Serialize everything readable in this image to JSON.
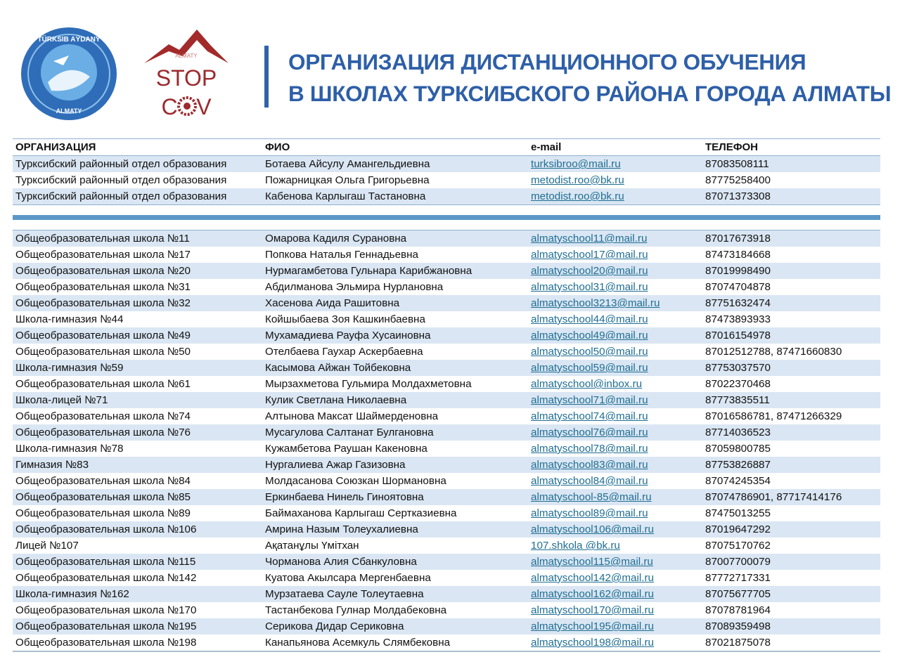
{
  "header": {
    "logo_left_text": [
      "TÜRKSIB AÝDANY",
      "ALMATY"
    ],
    "logo_right_text": [
      "ALMATY",
      "STOP",
      "COV"
    ],
    "title_line1": "ОРГАНИЗАЦИЯ ДИСТАНЦИОННОГО ОБУЧЕНИЯ",
    "title_line2": "В ШКОЛАХ ТУРКСИБСКОГО РАЙОНА ГОРОДА АЛМАТЫ",
    "accent_color": "#2e5fa8"
  },
  "columns": [
    "ОРГАНИЗАЦИЯ",
    "ФИО",
    "e-mail",
    "ТЕЛЕФОН"
  ],
  "department_rows": [
    [
      "Турксибский районный отдел образования",
      "Ботаева Айсулу Амангельдиевна",
      "turksibroo@mail.ru",
      "87083508111"
    ],
    [
      "Турксибский районный отдел образования",
      "Пожарницкая  Ольга  Григорьевна",
      "metodist.roo@bk.ru",
      "87775258400"
    ],
    [
      "Турксибский районный отдел образования",
      "Кабенова  Карлыгаш Тастановна",
      "metodist.roo@bk.ru",
      "87071373308"
    ]
  ],
  "school_rows": [
    [
      "Общеобразовательная школа №11",
      "Омарова Кадиля Сурановна",
      "almatyschool11@mail.ru",
      "87017673918"
    ],
    [
      "Общеобразовательная школа №17",
      "Попкова Наталья Геннадьевна",
      "almatyschool17@mail.ru",
      "87473184668"
    ],
    [
      "Общеобразовательная школа №20",
      "Нурмагамбетова Гульнара Карибжановна",
      "almatyschool20@mail.ru",
      "87019998490"
    ],
    [
      "Общеобразовательная школа №31",
      "Абдилманова Эльмира Нурлановна",
      "almatyschool31@mail.ru",
      "87074704878"
    ],
    [
      "Общеобразовательная школа №32",
      "Хасенова Аида Рашитовна",
      "almatyschool3213@mail.ru",
      "87751632474"
    ],
    [
      "Школа-гимназия №44",
      "Койшыбаева Зоя Кашкинбаевна",
      "almatyschool44@mail.ru",
      "87473893933"
    ],
    [
      "Общеобразовательная школа №49",
      "Мухамадиева Рауфа Хусаиновна",
      "almatyschool49@mail.ru",
      "87016154978"
    ],
    [
      "Общеобразовательная школа №50",
      "Отелбаева Гаухар Аскербаевна",
      "almatyschool50@mail.ru",
      "87012512788, 87471660830"
    ],
    [
      "Школа-гимназия №59",
      "Касымова Айжан Тойбековна",
      "almatyschool59@mail.ru",
      "87753037570"
    ],
    [
      "Общеобразовательная школа №61",
      "Мырзахметова Гульмира Молдахметовна",
      "almatyschool@inbox.ru",
      "87022370468"
    ],
    [
      "Школа-лицей №71",
      "Кулик Светлана  Николаевна",
      "almatyschool71@mail.ru",
      "87773835511"
    ],
    [
      "Общеобразовательная школа №74",
      "Алтынова Максат Шаймерденовна",
      "almatyschool74@mail.ru",
      "87016586781, 87471266329"
    ],
    [
      "Общеобразовательная школа №76",
      "Мусагулова Салтанат Булгановна",
      "almatyschool76@mail.ru",
      "87714036523"
    ],
    [
      "Школа-гимназия №78",
      "Кужамбетова Раушан Какеновна",
      "almatyschool78@mail.ru",
      "87059800785"
    ],
    [
      "Гимназия №83",
      "Нургалиева Ажар Газизовна",
      "almatyschool83@mail.ru",
      "87753826887"
    ],
    [
      "Общеобразовательная школа №84",
      "Молдасанова Союзкан Шормановна",
      "almatyschool84@mail.ru",
      "87074245354"
    ],
    [
      "Общеобразовательная школа №85",
      "Еркинбаева Нинель Гиноятовна",
      "almatyschool-85@mail.ru",
      "87074786901, 87717414176"
    ],
    [
      "Общеобразовательная школа №89",
      "Баймаханова Карлыгаш Серткaзиевна",
      "almatyschool89@mail.ru",
      "87475013255"
    ],
    [
      "Общеобразовательная школа №106",
      "Амрина Назым Толеухалиевна",
      "almatyschool106@mail.ru",
      "87019647292"
    ],
    [
      "Лицей №107",
      "Ақатанұлы Үмітхан",
      " 107.shkola @bk.ru",
      "87075170762"
    ],
    [
      "Общеобразовательная школа №115",
      "Чорманова Алия Сбанкуловна",
      "almatyschool115@mail.ru",
      "87007700079"
    ],
    [
      "Общеобразовательная школа №142",
      "Куатова Акылсара Мергенбаевна",
      "almatyschool142@mail.ru",
      "87772717331"
    ],
    [
      "Школа-гимназия №162",
      "Мурзатаева Сауле Толеутаевна",
      "almatyschool162@mail.ru",
      "87075677705"
    ],
    [
      "Общеобразовательная школа №170",
      "Тастанбекова Гулнар Молдабековна",
      "almatyschool170@mail.ru",
      "87078781964"
    ],
    [
      "Общеобразовательная школа №195",
      "Серикова Дидар Сериковна",
      "almatyschool195@mail.ru",
      "87089359498"
    ],
    [
      "Общеобразовательная школа №198",
      "Канапьянова Асемкуль Слямбековна",
      "almatyschool198@mail.ru",
      "87021875078"
    ]
  ]
}
